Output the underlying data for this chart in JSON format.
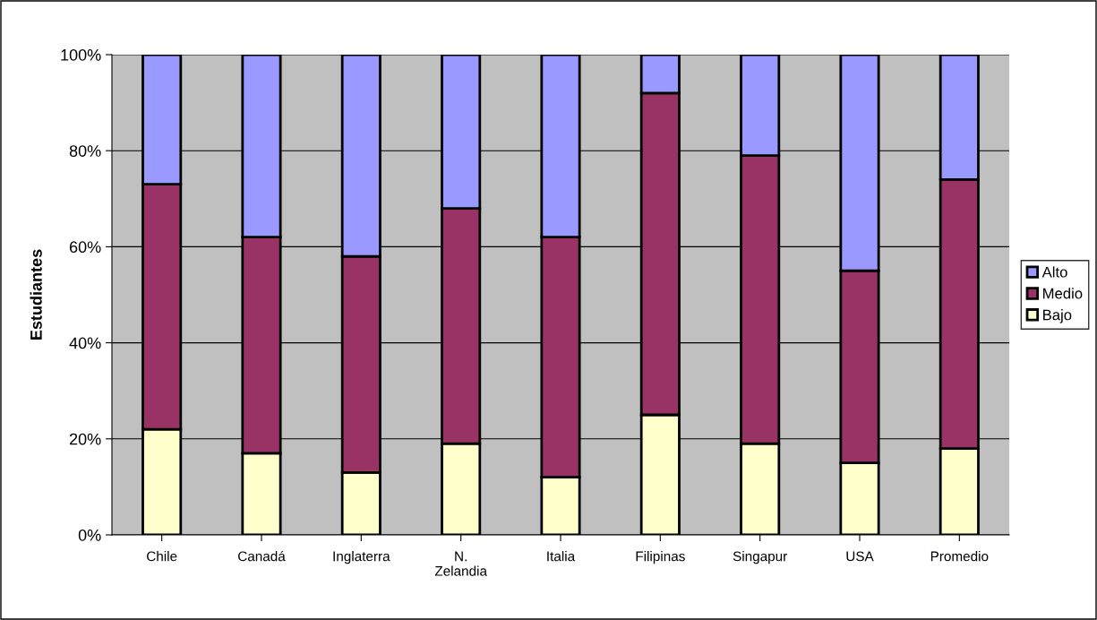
{
  "chart_data": {
    "type": "bar",
    "stacked": true,
    "ylabel": "Estudiantes",
    "categories": [
      "Chile",
      "Canadá",
      "Inglaterra",
      "N.\nZelandia",
      "Italia",
      "Filipinas",
      "Singapur",
      "USA",
      "Promedio"
    ],
    "series": [
      {
        "name": "Bajo",
        "color": "#ffffcc",
        "values": [
          22,
          17,
          13,
          19,
          12,
          25,
          19,
          15,
          18
        ]
      },
      {
        "name": "Medio",
        "color": "#993366",
        "values": [
          51,
          45,
          45,
          49,
          50,
          67,
          60,
          40,
          56
        ]
      },
      {
        "name": "Alto",
        "color": "#9999ff",
        "values": [
          27,
          38,
          42,
          32,
          38,
          8,
          21,
          45,
          26
        ]
      }
    ],
    "ylim": [
      0,
      100
    ],
    "yticks": [
      {
        "value": 0,
        "label": "0%"
      },
      {
        "value": 20,
        "label": "20%"
      },
      {
        "value": 40,
        "label": "40%"
      },
      {
        "value": 60,
        "label": "60%"
      },
      {
        "value": 80,
        "label": "80%"
      },
      {
        "value": 100,
        "label": "100%"
      }
    ],
    "grid": "y",
    "legend": "right"
  }
}
